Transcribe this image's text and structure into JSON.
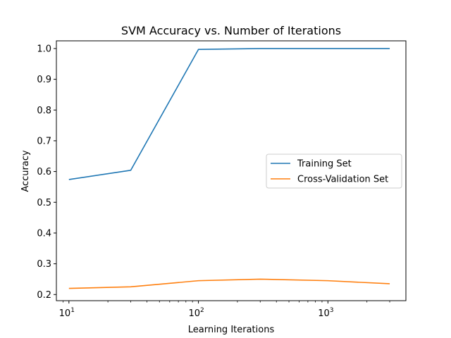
{
  "chart_data": {
    "type": "line",
    "title": "SVM Accuracy vs. Number of Iterations",
    "xlabel": "Learning Iterations",
    "ylabel": "Accuracy",
    "xscale": "log",
    "xlim": [
      8,
      4000
    ],
    "ylim": [
      0.18,
      1.025
    ],
    "x": [
      10,
      30,
      100,
      300,
      1000,
      3000
    ],
    "xticks": [
      10,
      100,
      1000
    ],
    "xtick_labels": [
      {
        "base": "10",
        "exp": "1"
      },
      {
        "base": "10",
        "exp": "2"
      },
      {
        "base": "10",
        "exp": "3"
      }
    ],
    "yticks": [
      "0.2",
      "0.3",
      "0.4",
      "0.5",
      "0.6",
      "0.7",
      "0.8",
      "0.9",
      "1.0"
    ],
    "series": [
      {
        "name": "Training Set",
        "color": "#1f77b4",
        "values": [
          0.574,
          0.604,
          0.997,
          1.0,
          1.0,
          1.0
        ]
      },
      {
        "name": "Cross-Validation Set",
        "color": "#ff7f0e",
        "values": [
          0.22,
          0.225,
          0.245,
          0.25,
          0.245,
          0.235
        ]
      }
    ],
    "grid": false,
    "legend_position": "center-right"
  }
}
